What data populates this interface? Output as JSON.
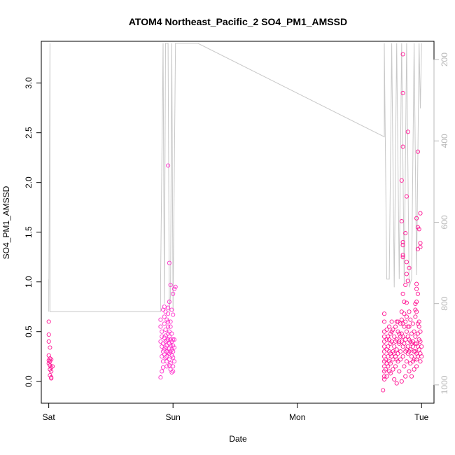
{
  "chart_data": {
    "type": "scatter",
    "title": "ATOM4 Northeast_Pacific_2 SO4_PM1_AMSSD",
    "xlabel": "Date",
    "ylabel": "SO4_PM1_AMSSD",
    "x_ticks": [
      "Sat",
      "Sun",
      "Mon",
      "Tue"
    ],
    "y_ticks": [
      "0.0",
      "0.5",
      "1.0",
      "1.5",
      "2.0",
      "2.5",
      "3.0"
    ],
    "y2_ticks": [
      "200",
      "400",
      "600",
      "800",
      "1000"
    ],
    "xlim_days": [
      -0.06,
      3.1
    ],
    "ylim": [
      -0.22,
      3.42
    ],
    "y2lim": [
      1045,
      155
    ],
    "colors": {
      "points": "#ff1493",
      "points_alt": "#ff33cc",
      "altitude_line": "#c8c8c8"
    },
    "series": [
      {
        "values": [
          [
            0.0,
            0.6
          ],
          [
            0.0,
            0.47
          ],
          [
            0.0,
            0.4
          ],
          [
            0.01,
            0.34
          ],
          [
            0.0,
            0.26
          ],
          [
            0.01,
            0.23
          ],
          [
            0.0,
            0.21
          ],
          [
            0.01,
            0.2
          ],
          [
            0.0,
            0.18
          ],
          [
            0.01,
            0.16
          ],
          [
            0.02,
            0.14
          ],
          [
            0.01,
            0.12
          ],
          [
            0.02,
            0.1
          ],
          [
            0.01,
            0.06
          ],
          [
            0.02,
            0.04
          ],
          [
            0.02,
            0.03
          ],
          [
            0.03,
            0.15
          ],
          [
            0.02,
            0.22
          ],
          [
            0.9,
            0.62
          ],
          [
            0.9,
            0.55
          ],
          [
            0.91,
            0.5
          ],
          [
            0.91,
            0.45
          ],
          [
            0.9,
            0.4
          ],
          [
            0.91,
            0.35
          ],
          [
            0.92,
            0.3
          ],
          [
            0.91,
            0.25
          ],
          [
            0.92,
            0.2
          ],
          [
            0.92,
            0.14
          ],
          [
            0.91,
            0.1
          ],
          [
            0.9,
            0.04
          ],
          [
            0.92,
            0.72
          ],
          [
            0.93,
            0.75
          ],
          [
            0.93,
            0.65
          ],
          [
            0.93,
            0.58
          ],
          [
            0.94,
            0.52
          ],
          [
            0.94,
            0.46
          ],
          [
            0.94,
            0.4
          ],
          [
            0.94,
            0.34
          ],
          [
            0.95,
            0.3
          ],
          [
            0.95,
            0.25
          ],
          [
            0.95,
            0.2
          ],
          [
            0.95,
            0.15
          ],
          [
            0.96,
            0.68
          ],
          [
            0.96,
            0.6
          ],
          [
            0.96,
            0.55
          ],
          [
            0.96,
            0.48
          ],
          [
            0.96,
            0.42
          ],
          [
            0.97,
            0.38
          ],
          [
            0.97,
            0.33
          ],
          [
            0.97,
            0.28
          ],
          [
            0.97,
            0.22
          ],
          [
            0.98,
            0.18
          ],
          [
            0.98,
            0.12
          ],
          [
            0.96,
            0.74
          ],
          [
            0.95,
            0.62
          ],
          [
            0.94,
            0.7
          ],
          [
            0.93,
            0.44
          ],
          [
            0.92,
            0.38
          ],
          [
            0.93,
            0.32
          ],
          [
            0.93,
            0.27
          ],
          [
            0.94,
            0.24
          ],
          [
            0.95,
            0.36
          ],
          [
            0.95,
            0.41
          ],
          [
            0.96,
            0.29
          ],
          [
            0.97,
            0.45
          ],
          [
            0.97,
            0.5
          ],
          [
            0.98,
            0.55
          ],
          [
            0.98,
            0.42
          ],
          [
            0.98,
            0.36
          ],
          [
            0.98,
            0.3
          ],
          [
            0.99,
            0.26
          ],
          [
            0.99,
            0.32
          ],
          [
            0.99,
            0.4
          ],
          [
            0.99,
            0.48
          ],
          [
            1.0,
            0.36
          ],
          [
            1.0,
            0.3
          ],
          [
            1.0,
            0.24
          ],
          [
            1.0,
            0.42
          ],
          [
            1.01,
            0.34
          ],
          [
            1.01,
            0.2
          ],
          [
            1.0,
            0.15
          ],
          [
            1.01,
            0.42
          ],
          [
            0.98,
            0.6
          ],
          [
            0.97,
            0.8
          ],
          [
            0.99,
            0.72
          ],
          [
            1.0,
            0.67
          ],
          [
            0.98,
            0.97
          ],
          [
            1.0,
            0.88
          ],
          [
            1.01,
            0.93
          ],
          [
            1.02,
            0.95
          ],
          [
            0.96,
            2.17
          ],
          [
            0.97,
            1.19
          ],
          [
            0.99,
            0.09
          ],
          [
            1.0,
            0.1
          ],
          [
            0.97,
            0.16
          ],
          [
            2.7,
            0.68
          ],
          [
            2.7,
            0.6
          ],
          [
            2.7,
            0.5
          ],
          [
            2.7,
            0.45
          ],
          [
            2.7,
            0.4
          ],
          [
            2.7,
            0.35
          ],
          [
            2.7,
            0.3
          ],
          [
            2.7,
            0.25
          ],
          [
            2.7,
            0.2
          ],
          [
            2.7,
            0.15
          ],
          [
            2.7,
            0.1
          ],
          [
            2.7,
            0.05
          ],
          [
            2.7,
            0.02
          ],
          [
            2.69,
            -0.09
          ],
          [
            2.71,
            0.12
          ],
          [
            2.71,
            0.22
          ],
          [
            2.72,
            0.32
          ],
          [
            2.72,
            0.42
          ],
          [
            2.72,
            0.52
          ],
          [
            2.72,
            0.05
          ],
          [
            2.73,
            0.15
          ],
          [
            2.73,
            0.25
          ],
          [
            2.73,
            0.35
          ],
          [
            2.73,
            0.45
          ],
          [
            2.74,
            0.55
          ],
          [
            2.74,
            0.3
          ],
          [
            2.74,
            0.2
          ],
          [
            2.74,
            0.1
          ],
          [
            2.75,
            0.38
          ],
          [
            2.75,
            0.48
          ],
          [
            2.75,
            0.28
          ],
          [
            2.75,
            0.18
          ],
          [
            2.76,
            0.6
          ],
          [
            2.76,
            0.5
          ],
          [
            2.76,
            0.4
          ],
          [
            2.77,
            0.3
          ],
          [
            2.77,
            0.22
          ],
          [
            2.77,
            0.12
          ],
          [
            2.78,
            0.02
          ],
          [
            2.78,
            0.45
          ],
          [
            2.78,
            0.35
          ],
          [
            2.79,
            0.25
          ],
          [
            2.79,
            0.55
          ],
          [
            2.79,
            0.15
          ],
          [
            2.8,
            0.42
          ],
          [
            2.8,
            0.32
          ],
          [
            2.8,
            0.6
          ],
          [
            2.8,
            -0.02
          ],
          [
            2.81,
            0.5
          ],
          [
            2.81,
            0.28
          ],
          [
            2.81,
            0.2
          ],
          [
            2.82,
            0.38
          ],
          [
            2.82,
            0.48
          ],
          [
            2.82,
            0.1
          ],
          [
            2.83,
            0.3
          ],
          [
            2.83,
            0.58
          ],
          [
            2.83,
            0.22
          ],
          [
            2.84,
            0.4
          ],
          [
            2.84,
            0.62
          ],
          [
            2.84,
            0.0
          ],
          [
            2.85,
            0.35
          ],
          [
            2.85,
            0.45
          ],
          [
            2.85,
            0.25
          ],
          [
            2.86,
            0.55
          ],
          [
            2.86,
            0.15
          ],
          [
            2.86,
            0.68
          ],
          [
            2.87,
            0.3
          ],
          [
            2.87,
            0.42
          ],
          [
            2.87,
            0.05
          ],
          [
            2.88,
            0.5
          ],
          [
            2.88,
            0.2
          ],
          [
            2.88,
            0.65
          ],
          [
            2.89,
            0.35
          ],
          [
            2.89,
            0.28
          ],
          [
            2.89,
            0.45
          ],
          [
            2.9,
            0.55
          ],
          [
            2.9,
            0.1
          ],
          [
            2.9,
            0.3
          ],
          [
            2.91,
            0.4
          ],
          [
            2.91,
            0.62
          ],
          [
            2.91,
            0.18
          ],
          [
            2.92,
            0.48
          ],
          [
            2.92,
            0.25
          ],
          [
            2.92,
            0.05
          ],
          [
            2.93,
            0.35
          ],
          [
            2.93,
            0.58
          ],
          [
            2.93,
            0.4
          ],
          [
            2.94,
            0.22
          ],
          [
            2.94,
            0.12
          ],
          [
            2.94,
            0.5
          ],
          [
            2.95,
            0.3
          ],
          [
            2.95,
            0.45
          ],
          [
            2.95,
            0.65
          ],
          [
            2.96,
            0.38
          ],
          [
            2.96,
            0.28
          ],
          [
            2.96,
            0.15
          ],
          [
            2.97,
            0.48
          ],
          [
            2.97,
            0.35
          ],
          [
            2.97,
            0.25
          ],
          [
            2.98,
            0.42
          ],
          [
            2.98,
            0.55
          ],
          [
            2.98,
            0.32
          ],
          [
            2.99,
            0.2
          ],
          [
            2.99,
            0.4
          ],
          [
            2.99,
            0.28
          ],
          [
            3.0,
            0.35
          ],
          [
            3.0,
            0.25
          ],
          [
            2.75,
            0.08
          ],
          [
            2.77,
            0.52
          ],
          [
            2.79,
            0.4
          ],
          [
            2.81,
            0.6
          ],
          [
            2.83,
            0.45
          ],
          [
            2.85,
            0.58
          ],
          [
            2.87,
            0.6
          ],
          [
            2.89,
            0.55
          ],
          [
            2.91,
            0.32
          ],
          [
            2.93,
            0.2
          ],
          [
            2.95,
            0.38
          ],
          [
            2.97,
            0.58
          ],
          [
            2.99,
            0.5
          ],
          [
            2.72,
            0.18
          ],
          [
            2.74,
            0.42
          ],
          [
            2.76,
            0.25
          ],
          [
            2.78,
            0.28
          ],
          [
            2.8,
            0.22
          ],
          [
            2.82,
            0.4
          ],
          [
            2.84,
            0.48
          ],
          [
            2.86,
            0.38
          ],
          [
            2.88,
            0.32
          ],
          [
            2.9,
            0.42
          ],
          [
            2.92,
            0.38
          ],
          [
            2.94,
            0.3
          ],
          [
            2.96,
            0.22
          ],
          [
            2.98,
            0.6
          ],
          [
            2.85,
            3.29
          ],
          [
            2.85,
            2.9
          ],
          [
            2.89,
            2.51
          ],
          [
            2.97,
            2.31
          ],
          [
            2.85,
            2.36
          ],
          [
            2.84,
            2.02
          ],
          [
            2.88,
            1.86
          ],
          [
            2.99,
            1.69
          ],
          [
            2.96,
            1.64
          ],
          [
            2.84,
            1.61
          ],
          [
            2.97,
            1.55
          ],
          [
            2.98,
            1.53
          ],
          [
            2.87,
            1.49
          ],
          [
            2.85,
            1.4
          ],
          [
            2.85,
            1.37
          ],
          [
            2.99,
            1.39
          ],
          [
            2.99,
            1.35
          ],
          [
            2.97,
            1.33
          ],
          [
            2.85,
            1.27
          ],
          [
            2.85,
            1.25
          ],
          [
            2.88,
            1.2
          ],
          [
            2.9,
            1.14
          ],
          [
            2.88,
            1.08
          ],
          [
            2.89,
            1.01
          ],
          [
            2.87,
            0.97
          ],
          [
            2.96,
            0.98
          ],
          [
            2.96,
            0.93
          ],
          [
            2.97,
            0.88
          ],
          [
            2.85,
            0.88
          ],
          [
            2.86,
            0.8
          ],
          [
            2.88,
            0.79
          ],
          [
            2.95,
            0.78
          ],
          [
            2.96,
            0.8
          ],
          [
            2.84,
            0.7
          ],
          [
            2.9,
            0.7
          ],
          [
            2.95,
            0.72
          ],
          [
            2.96,
            0.7
          ]
        ]
      }
    ],
    "altitude_line": [
      [
        0.0,
        740
      ],
      [
        0.0,
        820
      ],
      [
        0.01,
        160
      ],
      [
        0.01,
        820
      ],
      [
        0.02,
        820
      ],
      [
        0.9,
        820
      ],
      [
        0.9,
        750
      ],
      [
        0.92,
        160
      ],
      [
        0.93,
        800
      ],
      [
        0.94,
        160
      ],
      [
        0.96,
        160
      ],
      [
        0.97,
        820
      ],
      [
        0.98,
        780
      ],
      [
        0.99,
        160
      ],
      [
        1.0,
        820
      ],
      [
        1.02,
        160
      ],
      [
        1.2,
        160
      ],
      [
        2.7,
        390
      ],
      [
        2.7,
        160
      ],
      [
        2.72,
        740
      ],
      [
        2.74,
        740
      ],
      [
        2.76,
        160
      ],
      [
        2.78,
        760
      ],
      [
        2.8,
        160
      ],
      [
        2.82,
        740
      ],
      [
        2.84,
        160
      ],
      [
        2.86,
        750
      ],
      [
        2.88,
        160
      ],
      [
        2.9,
        760
      ],
      [
        2.92,
        740
      ],
      [
        2.94,
        160
      ],
      [
        2.96,
        730
      ],
      [
        2.98,
        160
      ],
      [
        2.99,
        320
      ],
      [
        3.0,
        160
      ]
    ]
  }
}
